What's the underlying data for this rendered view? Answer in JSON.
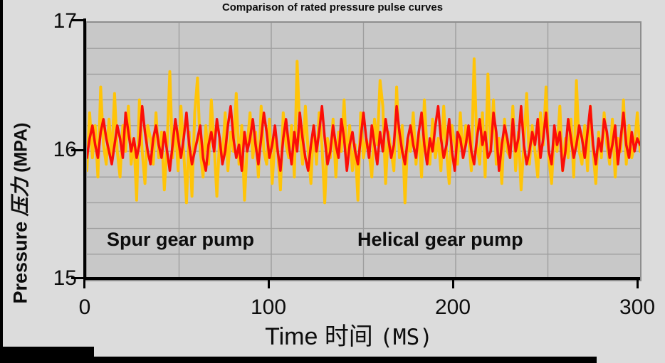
{
  "chart_data": {
    "type": "line",
    "title": "Comparison of rated pressure pulse curves",
    "xlabel": "Time 时间 (MS)",
    "ylabel": "Pressure 压力 (MPA)",
    "axis_titles": {
      "x_en": "Time",
      "x_zh": "时间",
      "x_unit": "(MS)",
      "y_en": "Pressure",
      "y_zh": "压力",
      "y_unit": "(MPA)"
    },
    "xlim": [
      0,
      300
    ],
    "ylim": [
      15,
      17
    ],
    "x_ticks": [
      "0",
      "100",
      "200",
      "300"
    ],
    "y_ticks": [
      "15",
      "16",
      "17"
    ],
    "x_minor_grid_step": 50,
    "y_minor_grid_step": 0.2,
    "grid": "on",
    "legend_position": "inside-bottom",
    "plot_bg_color": "#c8c8c8",
    "grid_color": "#9e9e9e",
    "x_start": 0,
    "x_step": 1.5,
    "series": [
      {
        "name": "Spur gear pump",
        "color": "#FFC408",
        "values": [
          15.85,
          16.3,
          15.95,
          16.2,
          15.8,
          16.5,
          16.05,
          15.9,
          16.25,
          15.95,
          16.45,
          16.0,
          15.8,
          16.2,
          16.0,
          16.35,
          15.9,
          16.1,
          15.62,
          16.4,
          16.0,
          15.75,
          16.2,
          16.1,
          15.9,
          16.3,
          15.95,
          16.15,
          15.7,
          16.05,
          16.62,
          15.95,
          16.2,
          15.85,
          16.35,
          16.0,
          15.6,
          16.15,
          15.65,
          16.3,
          16.57,
          16.0,
          15.8,
          16.2,
          15.9,
          16.4,
          16.05,
          15.65,
          16.1,
          15.95,
          16.3,
          15.85,
          16.15,
          16.0,
          16.45,
          15.9,
          16.2,
          15.62,
          16.05,
          16.3,
          15.95,
          16.15,
          15.8,
          16.35,
          16.0,
          15.9,
          16.25,
          15.75,
          16.1,
          16.0,
          15.7,
          16.3,
          16.05,
          15.95,
          16.2,
          15.8,
          16.7,
          16.15,
          15.9,
          16.35,
          16.0,
          15.75,
          16.2,
          15.9,
          16.3,
          16.05,
          15.6,
          16.1,
          15.95,
          16.25,
          15.8,
          16.15,
          16.0,
          16.4,
          15.9,
          16.2,
          15.85,
          16.05,
          15.62,
          16.3,
          15.95,
          16.1,
          16.0,
          15.8,
          16.25,
          16.05,
          16.55,
          16.35,
          15.75,
          16.15,
          16.0,
          15.85,
          16.5,
          15.95,
          16.2,
          15.6,
          16.1,
          16.0,
          16.3,
          15.9,
          16.15,
          15.8,
          16.4,
          16.0,
          15.9,
          16.25,
          15.95,
          16.1,
          15.85,
          16.35,
          16.0,
          15.75,
          16.2,
          16.05,
          15.9,
          16.3,
          15.95,
          16.2,
          16.1,
          15.85,
          16.72,
          16.05,
          15.9,
          16.3,
          15.8,
          16.6,
          16.0,
          16.4,
          15.9,
          16.1,
          15.75,
          16.25,
          16.0,
          15.95,
          16.35,
          15.85,
          16.15,
          15.7,
          16.05,
          16.45,
          15.9,
          16.2,
          16.0,
          15.8,
          16.3,
          16.05,
          16.5,
          15.95,
          15.75,
          16.15,
          16.0,
          16.35,
          15.85,
          16.1,
          15.95,
          16.25,
          15.8,
          16.55,
          16.0,
          15.9,
          16.2,
          15.85,
          16.35,
          16.0,
          15.75,
          16.15,
          15.95,
          16.3,
          16.05,
          15.9,
          16.25,
          15.8,
          16.1,
          16.0,
          16.4,
          15.9,
          16.2,
          15.95,
          16.05,
          16.3,
          16.0
        ]
      },
      {
        "name": "Helical gear pump",
        "color": "#FB0E08",
        "values": [
          15.95,
          16.1,
          16.2,
          16.05,
          15.95,
          16.15,
          16.25,
          16.1,
          16.0,
          15.9,
          16.05,
          16.2,
          16.1,
          15.95,
          16.3,
          16.15,
          16.0,
          16.1,
          15.95,
          16.05,
          16.35,
          16.15,
          16.0,
          15.9,
          16.1,
          16.2,
          16.05,
          15.95,
          16.15,
          16.0,
          15.85,
          16.05,
          16.25,
          16.1,
          15.95,
          16.1,
          16.3,
          16.05,
          15.9,
          16.0,
          16.1,
          16.2,
          15.95,
          15.85,
          16.05,
          16.15,
          16.0,
          16.25,
          16.1,
          15.9,
          16.0,
          16.2,
          16.35,
          16.1,
          15.95,
          16.05,
          15.85,
          16.15,
          16.0,
          16.1,
          16.25,
          16.05,
          15.9,
          16.1,
          16.3,
          16.15,
          15.95,
          16.05,
          16.2,
          16.0,
          15.85,
          16.1,
          16.25,
          16.05,
          15.9,
          16.15,
          16.0,
          16.3,
          16.1,
          15.95,
          15.85,
          16.05,
          16.2,
          16.0,
          16.15,
          16.35,
          16.1,
          15.9,
          16.0,
          16.2,
          16.05,
          15.95,
          16.25,
          16.1,
          15.85,
          16.05,
          16.15,
          16.0,
          15.9,
          16.1,
          16.3,
          16.1,
          15.95,
          16.2,
          16.05,
          15.9,
          16.15,
          16.0,
          16.25,
          16.1,
          15.95,
          16.05,
          16.35,
          16.15,
          16.0,
          15.9,
          16.1,
          16.2,
          16.05,
          15.95,
          16.15,
          16.3,
          16.05,
          15.9,
          16.1,
          16.0,
          16.2,
          16.35,
          16.1,
          15.95,
          16.05,
          16.25,
          16.0,
          15.85,
          16.15,
          16.1,
          15.95,
          16.05,
          16.2,
          16.0,
          15.9,
          16.1,
          16.25,
          16.05,
          16.15,
          15.95,
          16.0,
          16.3,
          16.15,
          15.85,
          16.05,
          16.2,
          16.1,
          15.95,
          16.25,
          16.0,
          16.1,
          16.35,
          16.05,
          15.9,
          16.0,
          16.15,
          16.05,
          16.25,
          15.95,
          16.1,
          16.3,
          16.0,
          15.9,
          16.2,
          16.05,
          16.15,
          15.85,
          16.0,
          16.25,
          16.1,
          15.95,
          16.05,
          16.2,
          16.1,
          15.95,
          16.15,
          16.35,
          16.05,
          15.9,
          16.1,
          16.0,
          16.25,
          16.15,
          15.95,
          16.05,
          16.2,
          15.9,
          16.1,
          16.3,
          16.05,
          15.95,
          16.15,
          16.0,
          16.1,
          16.05
        ]
      }
    ]
  }
}
